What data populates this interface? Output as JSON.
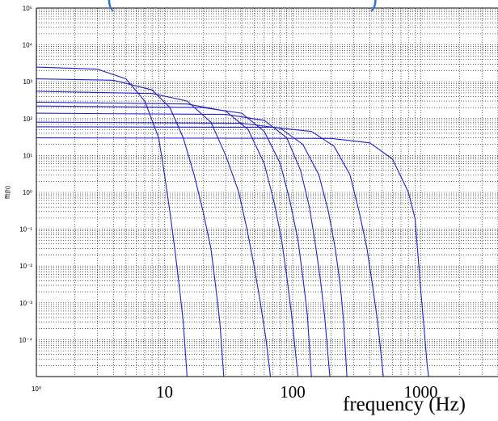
{
  "chart_data": {
    "type": "line",
    "title_fragments": [
      "(",
      ")"
    ],
    "xlabel": "frequency (Hz)",
    "ylabel": "fft(h)",
    "x_scale": "log",
    "y_scale": "log",
    "xlim": [
      1,
      4000
    ],
    "ylim": [
      1e-05,
      100000
    ],
    "grid": true,
    "x_ticks": [
      {
        "value": 1,
        "label": "10⁰"
      },
      {
        "value": 10,
        "label": "10"
      },
      {
        "value": 100,
        "label": "100"
      },
      {
        "value": 1000,
        "label": "1000"
      }
    ],
    "y_ticks": [
      {
        "value": 100000,
        "label": "10⁵"
      },
      {
        "value": 10000,
        "label": "10⁴"
      },
      {
        "value": 1000,
        "label": "10³"
      },
      {
        "value": 100,
        "label": "10²"
      },
      {
        "value": 10,
        "label": "10¹"
      },
      {
        "value": 1,
        "label": "10⁰"
      },
      {
        "value": 0.1,
        "label": "10⁻¹"
      },
      {
        "value": 0.01,
        "label": "10⁻²"
      },
      {
        "value": 0.001,
        "label": "10⁻³"
      },
      {
        "value": 0.0001,
        "label": "10⁻⁴"
      }
    ],
    "series_color": "#2020c8",
    "series": [
      {
        "values": [
          [
            1,
            2500
          ],
          [
            3,
            2200
          ],
          [
            5,
            1200
          ],
          [
            7,
            300
          ],
          [
            9,
            30
          ],
          [
            10,
            3
          ],
          [
            11,
            0.3
          ],
          [
            12,
            0.03
          ],
          [
            13,
            0.003
          ],
          [
            14,
            0.0003
          ],
          [
            15,
            1e-05
          ]
        ]
      },
      {
        "values": [
          [
            1,
            1200
          ],
          [
            4,
            1100
          ],
          [
            8,
            600
          ],
          [
            11,
            200
          ],
          [
            14,
            30
          ],
          [
            17,
            3
          ],
          [
            20,
            0.3
          ],
          [
            23,
            0.03
          ],
          [
            25,
            0.003
          ],
          [
            27,
            0.0003
          ],
          [
            29,
            1e-05
          ]
        ]
      },
      {
        "values": [
          [
            1,
            550
          ],
          [
            8,
            480
          ],
          [
            15,
            300
          ],
          [
            23,
            80
          ],
          [
            30,
            10
          ],
          [
            38,
            1
          ],
          [
            44,
            0.1
          ],
          [
            50,
            0.01
          ],
          [
            56,
            0.001
          ],
          [
            62,
            0.0001
          ],
          [
            67,
            1e-05
          ]
        ]
      },
      {
        "values": [
          [
            1,
            280
          ],
          [
            15,
            250
          ],
          [
            30,
            160
          ],
          [
            45,
            50
          ],
          [
            60,
            6
          ],
          [
            72,
            0.5
          ],
          [
            82,
            0.05
          ],
          [
            90,
            0.005
          ],
          [
            98,
            0.0005
          ],
          [
            110,
            1e-05
          ]
        ]
      },
      {
        "values": [
          [
            1,
            220
          ],
          [
            20,
            200
          ],
          [
            40,
            140
          ],
          [
            60,
            45
          ],
          [
            80,
            6
          ],
          [
            95,
            0.6
          ],
          [
            110,
            0.05
          ],
          [
            120,
            0.005
          ],
          [
            130,
            0.0005
          ],
          [
            140,
            1e-05
          ]
        ]
      },
      {
        "values": [
          [
            1,
            140
          ],
          [
            30,
            130
          ],
          [
            60,
            90
          ],
          [
            90,
            30
          ],
          [
            115,
            4
          ],
          [
            135,
            0.4
          ],
          [
            150,
            0.04
          ],
          [
            165,
            0.004
          ],
          [
            178,
            0.0004
          ],
          [
            195,
            1e-05
          ]
        ]
      },
      {
        "values": [
          [
            1,
            80
          ],
          [
            40,
            75
          ],
          [
            80,
            55
          ],
          [
            120,
            20
          ],
          [
            160,
            3
          ],
          [
            190,
            0.3
          ],
          [
            215,
            0.03
          ],
          [
            235,
            0.003
          ],
          [
            250,
            0.0003
          ],
          [
            265,
            1e-05
          ]
        ]
      },
      {
        "values": [
          [
            1,
            60
          ],
          [
            70,
            58
          ],
          [
            140,
            45
          ],
          [
            210,
            18
          ],
          [
            280,
            3
          ],
          [
            330,
            0.3
          ],
          [
            380,
            0.03
          ],
          [
            420,
            0.003
          ],
          [
            460,
            0.0003
          ],
          [
            510,
            1e-05
          ]
        ]
      },
      {
        "values": [
          [
            1,
            30
          ],
          [
            200,
            29
          ],
          [
            400,
            22
          ],
          [
            600,
            8
          ],
          [
            800,
            1
          ],
          [
            900,
            0.2
          ],
          [
            950,
            0.02
          ],
          [
            1000,
            0.002
          ],
          [
            1060,
            0.0002
          ],
          [
            1120,
            2e-05
          ],
          [
            1150,
            1e-05
          ]
        ]
      }
    ]
  }
}
